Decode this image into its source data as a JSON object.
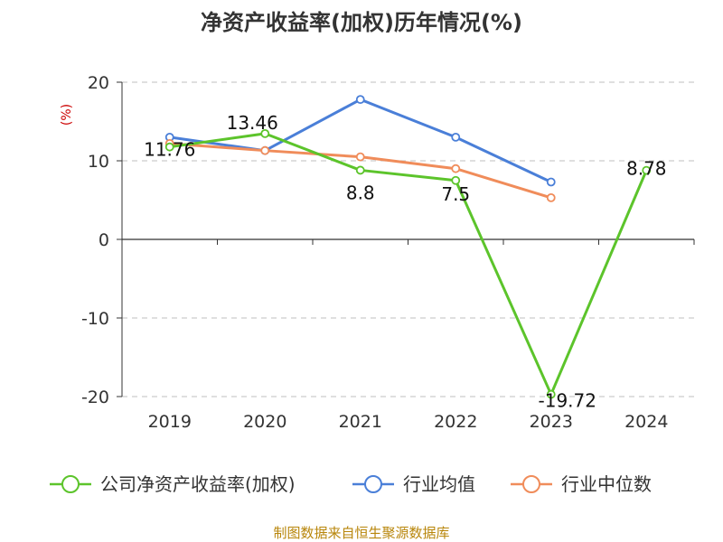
{
  "chart_data": {
    "type": "line",
    "title": "净资产收益率(加权)历年情况(%)",
    "ylabel": "(%)",
    "xlabel": "",
    "categories": [
      "2019",
      "2020",
      "2021",
      "2022",
      "2023",
      "2024"
    ],
    "ylim": [
      -20,
      20
    ],
    "yticks": [
      20,
      10,
      0,
      -10,
      -20
    ],
    "ytick_labels": [
      "20",
      "10",
      "0",
      "-10",
      "-20"
    ],
    "grid": true,
    "legend_position": "bottom",
    "series": [
      {
        "name": "公司净资产收益率(加权)",
        "color": "#5cc42b",
        "values": [
          11.76,
          13.46,
          8.8,
          7.5,
          -19.72,
          8.78
        ],
        "labels": [
          "11.76",
          "13.46",
          "8.8",
          "7.5",
          "-19.72",
          "8.78"
        ]
      },
      {
        "name": "行业均值",
        "color": "#4a7fd8",
        "values": [
          13.0,
          11.3,
          17.8,
          13.0,
          7.3,
          null
        ]
      },
      {
        "name": "行业中位数",
        "color": "#f08c5a",
        "values": [
          12.2,
          11.3,
          10.5,
          9.0,
          5.3,
          null
        ]
      }
    ]
  },
  "source": "制图数据来自恒生聚源数据库"
}
